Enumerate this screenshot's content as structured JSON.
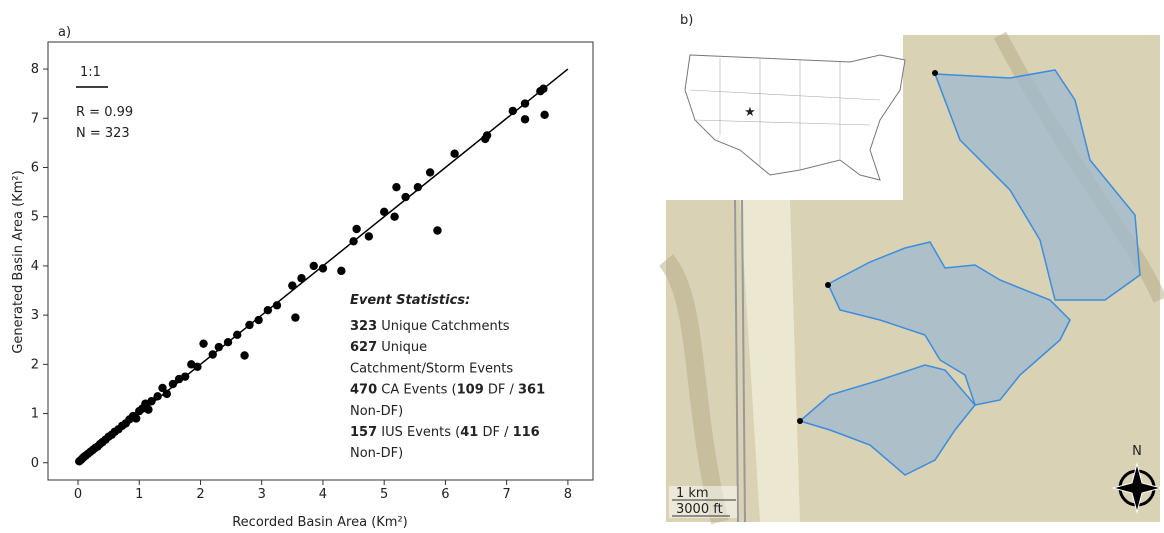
{
  "chart_data": {
    "type": "scatter",
    "panel_label": "a)",
    "x_label": "Recorded Basin Area (Km²)",
    "y_label": "Generated Basin Area (Km²)",
    "xlim": [
      -0.49,
      8.41
    ],
    "ylim": [
      -0.35,
      8.55
    ],
    "xticks": [
      0,
      1,
      2,
      3,
      4,
      5,
      6,
      7,
      8
    ],
    "yticks": [
      0,
      1,
      2,
      3,
      4,
      5,
      6,
      7,
      8
    ],
    "color": "#000000",
    "x": [
      0.02,
      0.05,
      0.08,
      0.1,
      0.13,
      0.16,
      0.2,
      0.24,
      0.28,
      0.32,
      0.36,
      0.4,
      0.45,
      0.5,
      0.55,
      0.6,
      0.66,
      0.72,
      0.78,
      0.84,
      0.9,
      0.95,
      1.0,
      1.05,
      1.1,
      1.15,
      1.2,
      1.3,
      1.38,
      1.45,
      1.55,
      1.65,
      1.75,
      1.85,
      1.95,
      2.05,
      2.2,
      2.3,
      2.45,
      2.6,
      2.72,
      2.8,
      2.95,
      3.1,
      3.25,
      3.5,
      3.55,
      3.65,
      3.85,
      4.0,
      4.3,
      4.5,
      4.55,
      4.75,
      5.0,
      5.17,
      5.2,
      5.35,
      5.55,
      5.75,
      5.87,
      6.15,
      6.65,
      6.68,
      7.1,
      7.3,
      7.3,
      7.55,
      7.6,
      7.62
    ],
    "values": [
      0.03,
      0.06,
      0.1,
      0.12,
      0.15,
      0.18,
      0.22,
      0.26,
      0.3,
      0.33,
      0.38,
      0.42,
      0.47,
      0.53,
      0.57,
      0.63,
      0.68,
      0.75,
      0.8,
      0.88,
      0.95,
      0.9,
      1.05,
      1.1,
      1.2,
      1.08,
      1.25,
      1.35,
      1.52,
      1.4,
      1.6,
      1.7,
      1.75,
      2.0,
      1.95,
      2.42,
      2.2,
      2.35,
      2.45,
      2.6,
      2.18,
      2.8,
      2.9,
      3.1,
      3.2,
      3.6,
      2.95,
      3.75,
      4.0,
      3.95,
      3.9,
      4.5,
      4.75,
      4.6,
      5.1,
      5.0,
      5.6,
      5.4,
      5.6,
      5.9,
      4.72,
      6.28,
      6.58,
      6.65,
      7.15,
      7.3,
      6.98,
      7.55,
      7.6,
      7.07
    ],
    "fit_line": {
      "label": "1:1",
      "x": [
        0,
        8
      ],
      "y": [
        0,
        8
      ]
    },
    "annotations": [
      "R = 0.99",
      "N = 323"
    ],
    "stats": {
      "title": "Event Statistics:",
      "lines": [
        [
          {
            "t": "323",
            "b": true
          },
          {
            "t": " Unique Catchments"
          }
        ],
        [
          {
            "t": "627",
            "b": true
          },
          {
            "t": " Unique"
          }
        ],
        [
          {
            "t": "Catchment/Storm Events"
          }
        ],
        [
          {
            "t": "470",
            "b": true
          },
          {
            "t": " CA Events ("
          },
          {
            "t": "109",
            "b": true
          },
          {
            "t": " DF / "
          },
          {
            "t": "361",
            "b": true
          }
        ],
        [
          {
            "t": "Non-DF)"
          }
        ],
        [
          {
            "t": "157",
            "b": true
          },
          {
            "t": " IUS Events ("
          },
          {
            "t": "41",
            "b": true
          },
          {
            "t": " DF / "
          },
          {
            "t": "116",
            "b": true
          }
        ],
        [
          {
            "t": "Non-DF)"
          }
        ]
      ]
    }
  },
  "map_panel": {
    "panel_label": "b)",
    "north": "N",
    "scale_km": "1 km",
    "scale_ft": "3000 ft"
  }
}
